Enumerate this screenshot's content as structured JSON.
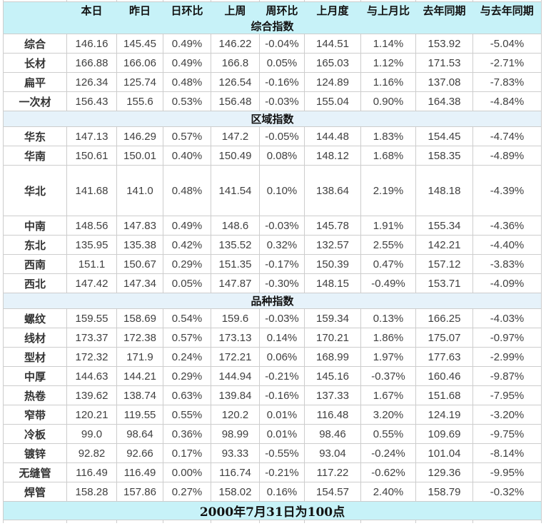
{
  "colors": {
    "header_bg": "#c7f2f8",
    "section_bg": "#e6f2fa",
    "positive": "#fa1414",
    "negative": "#0a9b3a",
    "neutral": "#333333",
    "border": "#cdcdcd",
    "number": "#404040"
  },
  "chart_data": {
    "type": "table",
    "columns": [
      "",
      "本日",
      "昨日",
      "日环比",
      "上周",
      "周环比",
      "上月度",
      "与上月比",
      "去年同期",
      "与去年同期"
    ],
    "sections": [
      {
        "title": "综合指数",
        "rows": [
          {
            "label": "综合",
            "values": [
              "146.16",
              "145.45",
              "0.49%",
              "146.22",
              "-0.04%",
              "144.51",
              "1.14%",
              "153.92",
              "-5.04%"
            ]
          },
          {
            "label": "长材",
            "values": [
              "166.88",
              "166.06",
              "0.49%",
              "166.8",
              "0.05%",
              "165.03",
              "1.12%",
              "171.53",
              "-2.71%"
            ]
          },
          {
            "label": "扁平",
            "values": [
              "126.34",
              "125.74",
              "0.48%",
              "126.54",
              "-0.16%",
              "124.89",
              "1.16%",
              "137.08",
              "-7.83%"
            ]
          },
          {
            "label": "一次材",
            "values": [
              "156.43",
              "155.6",
              "0.53%",
              "156.48",
              "-0.03%",
              "155.04",
              "0.90%",
              "164.38",
              "-4.84%"
            ]
          }
        ]
      },
      {
        "title": "区域指数",
        "rows": [
          {
            "label": "华东",
            "values": [
              "147.13",
              "146.29",
              "0.57%",
              "147.2",
              "-0.05%",
              "144.48",
              "1.83%",
              "154.45",
              "-4.74%"
            ]
          },
          {
            "label": "华南",
            "values": [
              "150.61",
              "150.01",
              "0.40%",
              "150.49",
              "0.08%",
              "148.12",
              "1.68%",
              "158.35",
              "-4.89%"
            ]
          },
          {
            "label": "华北",
            "values": [
              "141.68",
              "141.0",
              "0.48%",
              "141.54",
              "0.10%",
              "138.64",
              "2.19%",
              "148.18",
              "-4.39%"
            ],
            "tall": true
          },
          {
            "label": "中南",
            "values": [
              "148.56",
              "147.83",
              "0.49%",
              "148.6",
              "-0.03%",
              "145.78",
              "1.91%",
              "155.34",
              "-4.36%"
            ]
          },
          {
            "label": "东北",
            "values": [
              "135.95",
              "135.38",
              "0.42%",
              "135.52",
              "0.32%",
              "132.57",
              "2.55%",
              "142.21",
              "-4.40%"
            ]
          },
          {
            "label": "西南",
            "values": [
              "151.1",
              "150.67",
              "0.29%",
              "151.35",
              "-0.17%",
              "150.39",
              "0.47%",
              "157.12",
              "-3.83%"
            ]
          },
          {
            "label": "西北",
            "values": [
              "147.42",
              "147.34",
              "0.05%",
              "147.87",
              "-0.30%",
              "148.15",
              "-0.49%",
              "153.71",
              "-4.09%"
            ]
          }
        ]
      },
      {
        "title": "品种指数",
        "rows": [
          {
            "label": "螺纹",
            "values": [
              "159.55",
              "158.69",
              "0.54%",
              "159.6",
              "-0.03%",
              "159.34",
              "0.13%",
              "166.25",
              "-4.03%"
            ]
          },
          {
            "label": "线材",
            "values": [
              "173.37",
              "172.38",
              "0.57%",
              "173.13",
              "0.14%",
              "170.21",
              "1.86%",
              "175.07",
              "-0.97%"
            ]
          },
          {
            "label": "型材",
            "values": [
              "172.32",
              "171.9",
              "0.24%",
              "172.21",
              "0.06%",
              "168.99",
              "1.97%",
              "177.63",
              "-2.99%"
            ]
          },
          {
            "label": "中厚",
            "values": [
              "144.63",
              "144.21",
              "0.29%",
              "144.94",
              "-0.21%",
              "145.16",
              "-0.37%",
              "160.46",
              "-9.87%"
            ]
          },
          {
            "label": "热卷",
            "values": [
              "139.62",
              "138.74",
              "0.63%",
              "139.84",
              "-0.16%",
              "137.33",
              "1.67%",
              "151.68",
              "-7.95%"
            ]
          },
          {
            "label": "窄带",
            "values": [
              "120.21",
              "119.55",
              "0.55%",
              "120.2",
              "0.01%",
              "116.48",
              "3.20%",
              "124.19",
              "-3.20%"
            ]
          },
          {
            "label": "冷板",
            "values": [
              "99.0",
              "98.64",
              "0.36%",
              "98.99",
              "0.01%",
              "98.46",
              "0.55%",
              "109.69",
              "-9.75%"
            ]
          },
          {
            "label": "镀锌",
            "values": [
              "92.82",
              "92.66",
              "0.17%",
              "93.33",
              "-0.55%",
              "93.04",
              "-0.24%",
              "101.04",
              "-8.14%"
            ]
          },
          {
            "label": "无缝管",
            "values": [
              "116.49",
              "116.49",
              "0.00%",
              "116.74",
              "-0.21%",
              "117.22",
              "-0.62%",
              "129.36",
              "-9.95%"
            ]
          },
          {
            "label": "焊管",
            "values": [
              "158.28",
              "157.86",
              "0.27%",
              "158.02",
              "0.16%",
              "154.57",
              "2.40%",
              "158.79",
              "-0.32%"
            ]
          }
        ]
      }
    ],
    "footnote": "2000年7月31日为100点"
  }
}
